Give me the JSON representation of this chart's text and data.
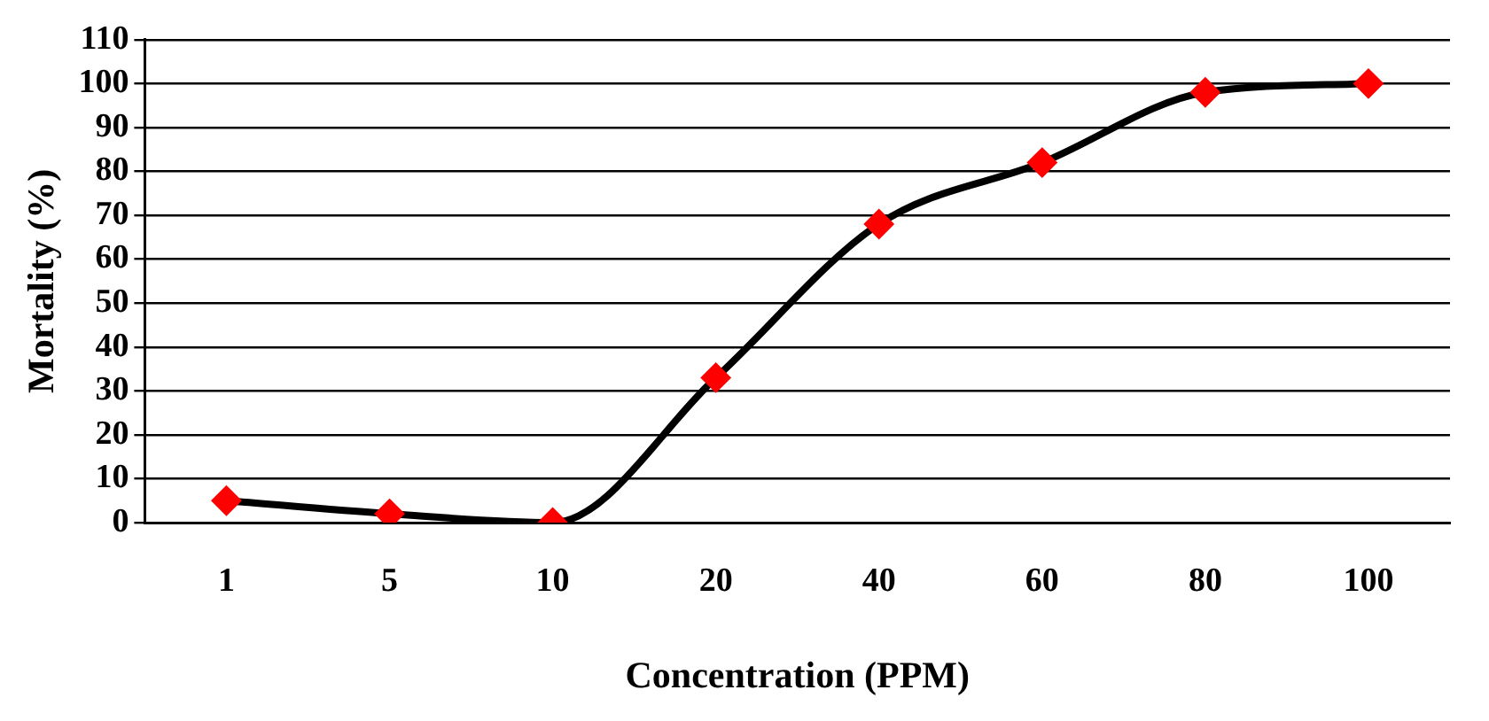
{
  "chart_data": {
    "type": "line",
    "xlabel": "Concentration (PPM)",
    "ylabel": "Mortality (%)",
    "categories": [
      "1",
      "5",
      "10",
      "20",
      "40",
      "60",
      "80",
      "100"
    ],
    "series": [
      {
        "color": "#000000",
        "marker": "none",
        "values": [
          5,
          2,
          0,
          33,
          68,
          82,
          98,
          100
        ]
      },
      {
        "type": "scatter",
        "color": "#ff0000",
        "marker": "diamond",
        "x": [
          "1",
          "5",
          "10",
          "20",
          "40",
          "60",
          "80",
          "100"
        ],
        "values": [
          5,
          2,
          0,
          33,
          68,
          82,
          98,
          100
        ]
      }
    ],
    "ylim": [
      0,
      110
    ],
    "yticks": [
      0,
      10,
      20,
      30,
      40,
      50,
      60,
      70,
      80,
      90,
      100,
      110
    ],
    "grid": "y",
    "legend": false
  }
}
